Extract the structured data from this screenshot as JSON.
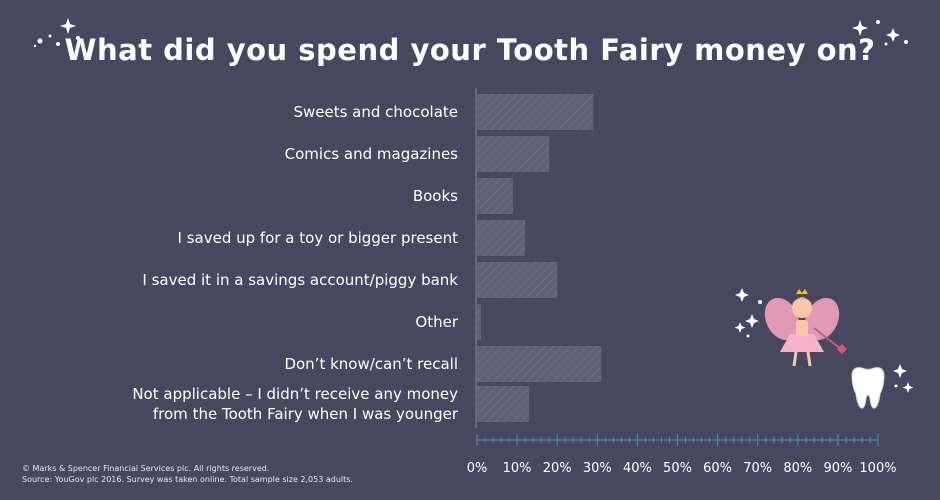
{
  "title": "What did you spend your Tooth Fairy money on?",
  "colors": {
    "background": "#474760",
    "bar": "#5f5f79",
    "bar_hatch": "#6c6c86",
    "axis": "#4a90b8",
    "text": "#ffffff"
  },
  "chart_data": {
    "type": "bar",
    "orientation": "horizontal",
    "categories": [
      [
        "Sweets and chocolate"
      ],
      [
        "Comics and magazines"
      ],
      [
        "Books"
      ],
      [
        "I saved up for a toy or bigger present"
      ],
      [
        "I saved it in a savings account/piggy bank"
      ],
      [
        "Other"
      ],
      [
        "Don’t know/can’t recall"
      ],
      [
        "Not applicable – I didn’t receive any money",
        "from the Tooth Fairy when I was younger"
      ]
    ],
    "values": [
      29,
      18,
      9,
      12,
      20,
      1,
      31,
      13
    ],
    "xlim": [
      0,
      100
    ],
    "ticks": [
      "0%",
      "10%",
      "20%",
      "30%",
      "40%",
      "50%",
      "60%",
      "70%",
      "80%",
      "90%",
      "100%"
    ],
    "grid": false
  },
  "credit": {
    "line1": "© Marks & Spencer Financial Services plc. All rights reserved.",
    "line2": "Source: YouGov plc 2016. Survey was taken online. Total sample size 2,053 adults."
  }
}
